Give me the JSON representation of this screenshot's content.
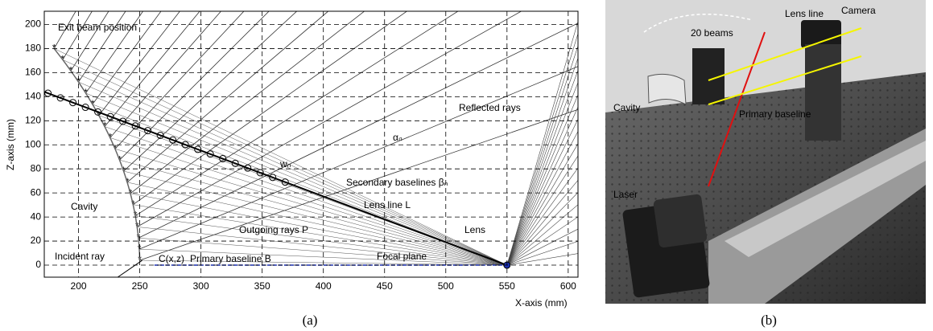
{
  "figure": {
    "panel_a": {
      "label": "(a)",
      "x_label": "X-axis (mm)",
      "y_label": "Z-axis (mm)",
      "xlim": [
        172,
        608
      ],
      "ylim": [
        -10,
        211
      ],
      "xticks": [
        200,
        250,
        300,
        350,
        400,
        450,
        500,
        550,
        600
      ],
      "yticks": [
        0,
        20,
        40,
        60,
        80,
        100,
        120,
        140,
        160,
        180,
        200
      ],
      "annotations": [
        "Exit beam position",
        "Reflected rays",
        "αₙ",
        "wₙ",
        "Secondary baselines βₙ",
        "Lens line L",
        "Cavity",
        "Outgoing rays P",
        "Lens",
        "Incident ray",
        "C(x,z)",
        "Primary baseline B",
        "Focal plane"
      ]
    },
    "panel_b": {
      "label": "(b)",
      "annotations": [
        "20 beams",
        "Lens line",
        "Camera",
        "Cavity",
        "Primary baseline",
        "Laser"
      ]
    }
  }
}
